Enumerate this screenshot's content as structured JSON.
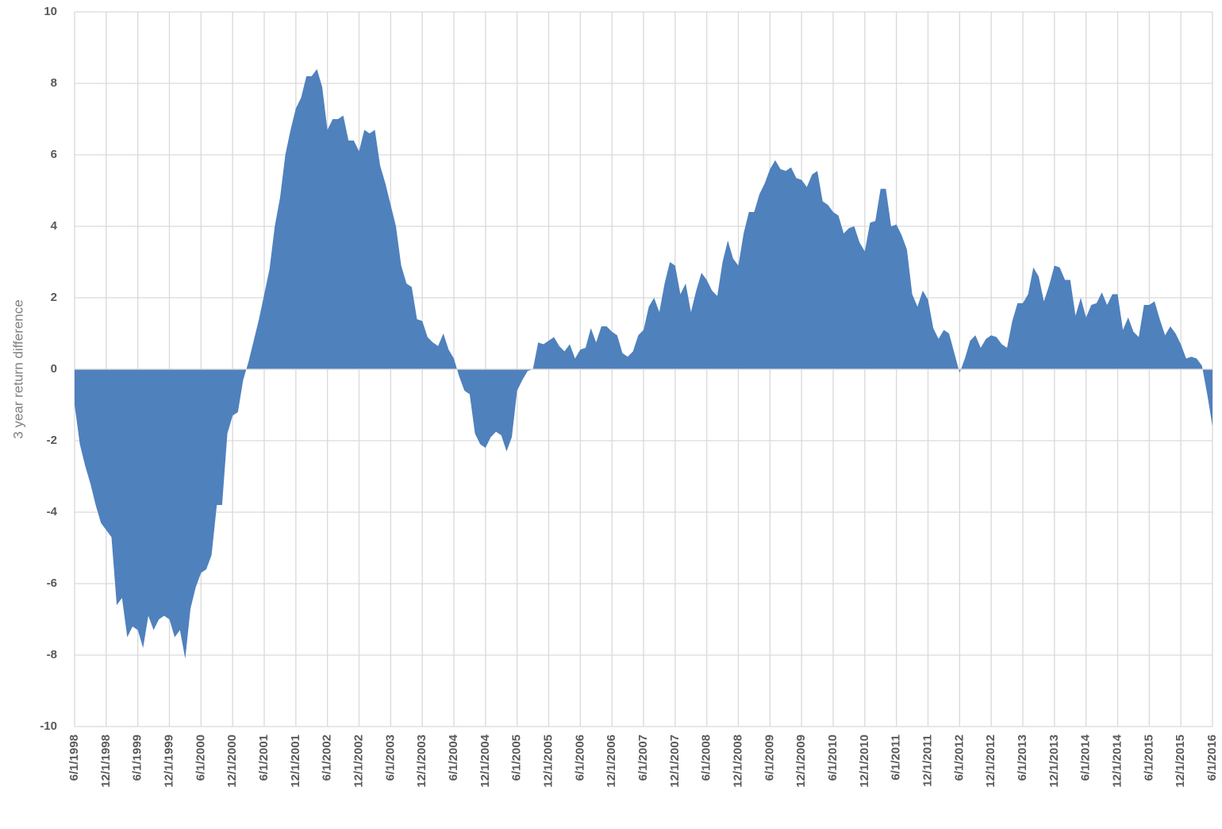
{
  "chart_data": {
    "type": "area",
    "y_label": "3 year return difference",
    "color": "#4f81bd",
    "ylim": [
      -10,
      10
    ],
    "yticks": [
      -10,
      -8,
      -6,
      -4,
      -2,
      0,
      2,
      4,
      6,
      8,
      10
    ],
    "grid": true,
    "categories": [
      "6/1/1998",
      null,
      null,
      null,
      null,
      null,
      "12/1/1998",
      null,
      null,
      null,
      null,
      null,
      "6/1/1999",
      null,
      null,
      null,
      null,
      null,
      "12/1/1999",
      null,
      null,
      null,
      null,
      null,
      "6/1/2000",
      null,
      null,
      null,
      null,
      null,
      "12/1/2000",
      null,
      null,
      null,
      null,
      null,
      "6/1/2001",
      null,
      null,
      null,
      null,
      null,
      "12/1/2001",
      null,
      null,
      null,
      null,
      null,
      "6/1/2002",
      null,
      null,
      null,
      null,
      null,
      "12/1/2002",
      null,
      null,
      null,
      null,
      null,
      "6/1/2003",
      null,
      null,
      null,
      null,
      null,
      "12/1/2003",
      null,
      null,
      null,
      null,
      null,
      "6/1/2004",
      null,
      null,
      null,
      null,
      null,
      "12/1/2004",
      null,
      null,
      null,
      null,
      null,
      "6/1/2005",
      null,
      null,
      null,
      null,
      null,
      "12/1/2005",
      null,
      null,
      null,
      null,
      null,
      "6/1/2006",
      null,
      null,
      null,
      null,
      null,
      "12/1/2006",
      null,
      null,
      null,
      null,
      null,
      "6/1/2007",
      null,
      null,
      null,
      null,
      null,
      "12/1/2007",
      null,
      null,
      null,
      null,
      null,
      "6/1/2008",
      null,
      null,
      null,
      null,
      null,
      "12/1/2008",
      null,
      null,
      null,
      null,
      null,
      "6/1/2009",
      null,
      null,
      null,
      null,
      null,
      "12/1/2009",
      null,
      null,
      null,
      null,
      null,
      "6/1/2010",
      null,
      null,
      null,
      null,
      null,
      "12/1/2010",
      null,
      null,
      null,
      null,
      null,
      "6/1/2011",
      null,
      null,
      null,
      null,
      null,
      "12/1/2011",
      null,
      null,
      null,
      null,
      null,
      "6/1/2012",
      null,
      null,
      null,
      null,
      null,
      "12/1/2012",
      null,
      null,
      null,
      null,
      null,
      "6/1/2013",
      null,
      null,
      null,
      null,
      null,
      "12/1/2013",
      null,
      null,
      null,
      null,
      null,
      "6/1/2014",
      null,
      null,
      null,
      null,
      null,
      "12/1/2014",
      null,
      null,
      null,
      null,
      null,
      "6/1/2015",
      null,
      null,
      null,
      null,
      null,
      "12/1/2015",
      null,
      null,
      null,
      null,
      null,
      "6/1/2016"
    ],
    "values": [
      -1.0,
      -2.1,
      -2.7,
      -3.2,
      -3.8,
      -4.3,
      -4.5,
      -4.7,
      -6.6,
      -6.4,
      -7.5,
      -7.2,
      -7.3,
      -7.8,
      -6.9,
      -7.3,
      -7.0,
      -6.9,
      -7.0,
      -7.5,
      -7.3,
      -8.1,
      -6.7,
      -6.1,
      -5.7,
      -5.6,
      -5.2,
      -3.8,
      -3.8,
      -1.8,
      -1.3,
      -1.2,
      -0.3,
      0.2,
      0.8,
      1.4,
      2.1,
      2.8,
      4.0,
      4.8,
      6.0,
      6.7,
      7.3,
      7.6,
      8.2,
      8.2,
      8.4,
      7.9,
      6.7,
      7.0,
      7.0,
      7.1,
      6.4,
      6.4,
      6.1,
      6.7,
      6.6,
      6.7,
      5.7,
      5.2,
      4.6,
      4.0,
      2.9,
      2.4,
      2.3,
      1.4,
      1.35,
      0.9,
      0.75,
      0.65,
      1.0,
      0.55,
      0.3,
      -0.2,
      -0.6,
      -0.7,
      -1.8,
      -2.1,
      -2.2,
      -1.9,
      -1.75,
      -1.85,
      -2.3,
      -1.9,
      -0.6,
      -0.3,
      -0.05,
      0.0,
      0.75,
      0.7,
      0.8,
      0.9,
      0.65,
      0.5,
      0.7,
      0.3,
      0.55,
      0.6,
      1.15,
      0.75,
      1.2,
      1.2,
      1.05,
      0.95,
      0.45,
      0.35,
      0.5,
      0.95,
      1.1,
      1.75,
      2.0,
      1.6,
      2.4,
      3.0,
      2.9,
      2.1,
      2.4,
      1.6,
      2.2,
      2.7,
      2.5,
      2.2,
      2.05,
      3.0,
      3.6,
      3.1,
      2.9,
      3.8,
      4.4,
      4.4,
      4.9,
      5.2,
      5.6,
      5.85,
      5.6,
      5.55,
      5.65,
      5.35,
      5.3,
      5.1,
      5.45,
      5.55,
      4.7,
      4.6,
      4.4,
      4.3,
      3.8,
      3.95,
      4.0,
      3.55,
      3.3,
      4.1,
      4.15,
      5.05,
      5.05,
      4.0,
      4.05,
      3.75,
      3.35,
      2.1,
      1.75,
      2.2,
      1.95,
      1.15,
      0.85,
      1.1,
      1.0,
      0.45,
      -0.1,
      0.3,
      0.8,
      0.95,
      0.6,
      0.85,
      0.95,
      0.9,
      0.7,
      0.6,
      1.35,
      1.85,
      1.85,
      2.1,
      2.85,
      2.6,
      1.9,
      2.35,
      2.9,
      2.85,
      2.5,
      2.5,
      1.5,
      2.0,
      1.45,
      1.8,
      1.85,
      2.15,
      1.8,
      2.1,
      2.1,
      1.1,
      1.45,
      1.05,
      0.9,
      1.8,
      1.8,
      1.9,
      1.4,
      0.95,
      1.2,
      1.0,
      0.7,
      0.3,
      0.35,
      0.3,
      0.1,
      -0.7,
      -1.6
    ]
  }
}
